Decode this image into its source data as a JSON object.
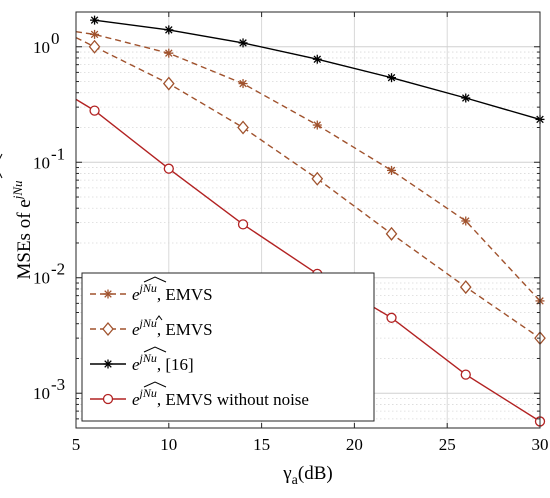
{
  "chart_data": {
    "type": "line",
    "xlabel": "γa(dB)",
    "xlabel_main": "γ",
    "xlabel_sub": "a",
    "xlabel_rest": "(dB)",
    "ylabel": "MSEs of e^{j\\widehat{Nu}}",
    "ylabel_main": "MSEs of e",
    "ylabel_exp": "jNu",
    "xlim": [
      5,
      30
    ],
    "ylim": [
      0.0005,
      2
    ],
    "y_scale": "log",
    "x_ticks": [
      5,
      10,
      15,
      20,
      25,
      30
    ],
    "x_tick_labels": [
      "5",
      "10",
      "15",
      "20",
      "25",
      "30"
    ],
    "y_ticks": [
      0.001,
      0.01,
      0.1,
      1
    ],
    "y_tick_labels": [
      {
        "base": "10",
        "exp": "-3"
      },
      {
        "base": "10",
        "exp": "-2"
      },
      {
        "base": "10",
        "exp": "-1"
      },
      {
        "base": "10",
        "exp": "0"
      }
    ],
    "grid": true,
    "legend_position": "bottom-left",
    "series": [
      {
        "name": "e^{j\\widehat{Nu}}, EMVS",
        "legend_exp": "jNu",
        "legend_suffix": ", EMVS",
        "legend_hat": "wide",
        "color": "#a0522d",
        "line": "dashed",
        "marker": "star",
        "x": [
          5,
          6,
          10,
          14,
          18,
          22,
          26,
          30
        ],
        "y": [
          1.35,
          1.28,
          0.88,
          0.48,
          0.21,
          0.085,
          0.031,
          0.0063
        ]
      },
      {
        "name": "e^{jN\\hat{u}}, EMVS",
        "legend_exp": "jNu",
        "legend_suffix": ", EMVS",
        "legend_hat": "u",
        "color": "#a0522d",
        "line": "dashed",
        "marker": "diamond",
        "x": [
          5,
          6,
          10,
          14,
          18,
          22,
          26,
          30
        ],
        "y": [
          1.2,
          1.0,
          0.48,
          0.2,
          0.072,
          0.024,
          0.0083,
          0.003
        ]
      },
      {
        "name": "e^{j\\widehat{Nu}}, [16]",
        "legend_exp": "jNu",
        "legend_suffix": ", [16]",
        "legend_hat": "wide",
        "color": "#000000",
        "line": "solid",
        "marker": "star",
        "x": [
          6,
          10,
          14,
          18,
          22,
          26,
          30
        ],
        "y": [
          1.7,
          1.4,
          1.08,
          0.78,
          0.54,
          0.36,
          0.235
        ]
      },
      {
        "name": "e^{j\\widehat{Nu}}, EMVS without noise",
        "legend_exp": "jNu",
        "legend_suffix": ", EMVS without noise",
        "legend_hat": "wide",
        "color": "#b22222",
        "line": "solid",
        "marker": "circle",
        "x": [
          5,
          6,
          10,
          14,
          18,
          22,
          26,
          30
        ],
        "y": [
          0.35,
          0.28,
          0.088,
          0.029,
          0.0108,
          0.0045,
          0.00145,
          0.00057
        ]
      }
    ]
  }
}
